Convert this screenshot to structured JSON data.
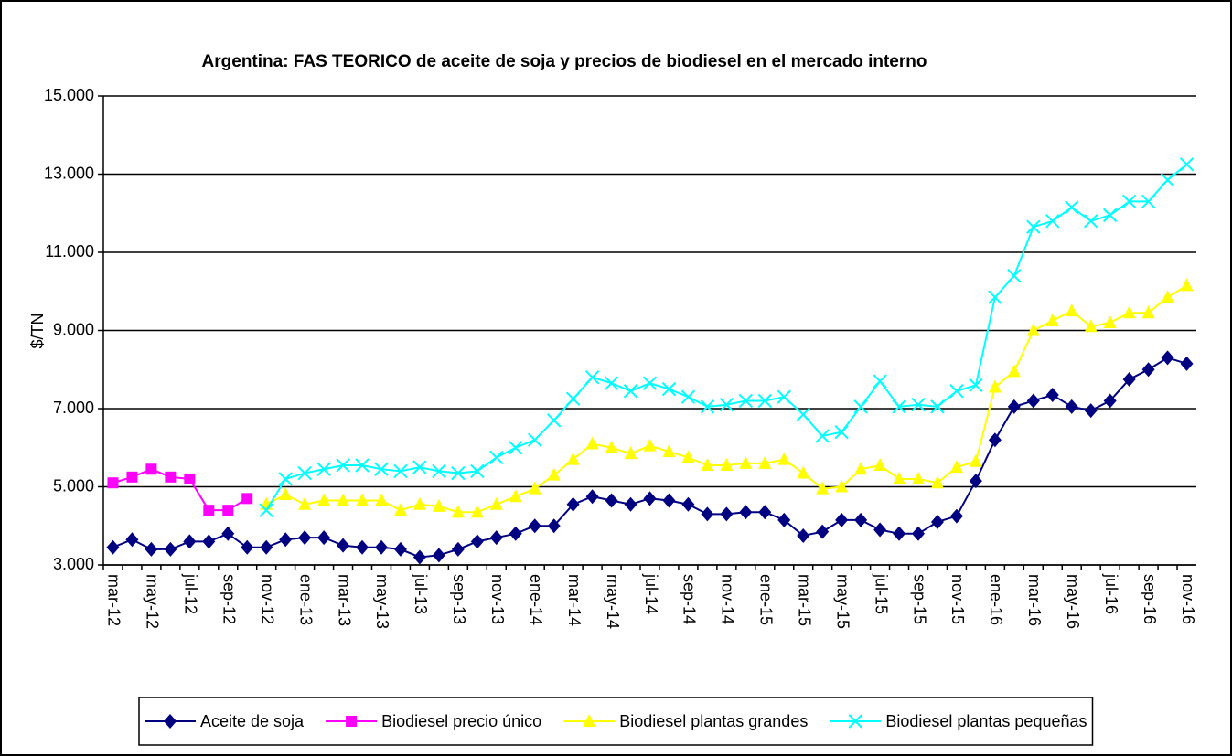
{
  "chart_data": {
    "type": "line",
    "title": "Argentina: FAS  TEORICO  de aceite de soja y precios de biodiesel en el mercado interno",
    "y_label": "$/TN",
    "categories": [
      "mar-12",
      null,
      "may-12",
      null,
      "jul-12",
      null,
      "sep-12",
      null,
      "nov-12",
      null,
      "ene-13",
      null,
      "mar-13",
      null,
      "may-13",
      null,
      "jul-13",
      null,
      "sep-13",
      null,
      "nov-13",
      null,
      "ene-14",
      null,
      "mar-14",
      null,
      "may-14",
      null,
      "jul-14",
      null,
      "sep-14",
      null,
      "nov-14",
      null,
      "ene-15",
      null,
      "mar-15",
      null,
      "may-15",
      null,
      "jul-15",
      null,
      "sep-15",
      null,
      "nov-15",
      null,
      "ene-16",
      null,
      "mar-16",
      null,
      "may-16",
      null,
      "jul-16",
      null,
      "sep-16",
      null,
      "nov-16"
    ],
    "series": [
      {
        "name": "Aceite de soja",
        "color": "#000080",
        "marker": "diamond",
        "values": [
          3450,
          3650,
          3400,
          3400,
          3600,
          3600,
          3800,
          3450,
          3450,
          3650,
          3700,
          3700,
          3500,
          3450,
          3450,
          3400,
          3200,
          3250,
          3400,
          3600,
          3700,
          3800,
          4000,
          4000,
          4550,
          4750,
          4650,
          4550,
          4700,
          4650,
          4550,
          4300,
          4300,
          4350,
          4350,
          4150,
          3750,
          3850,
          4150,
          4150,
          3900,
          3800,
          3800,
          4100,
          4250,
          5150,
          6200,
          7050,
          7200,
          7350,
          7050,
          6950,
          7200,
          7750,
          8000,
          8300,
          8150
        ]
      },
      {
        "name": "Biodiesel precio único",
        "color": "#ff00ff",
        "marker": "square",
        "values": [
          5100,
          5250,
          5450,
          5250,
          5200,
          4400,
          4400,
          4700,
          null,
          null,
          null,
          null,
          null,
          null,
          null,
          null,
          null,
          null,
          null,
          null,
          null,
          null,
          null,
          null,
          null,
          null,
          null,
          null,
          null,
          null,
          null,
          null,
          null,
          null,
          null,
          null,
          null,
          null,
          null,
          null,
          null,
          null,
          null,
          null,
          null,
          null,
          null,
          null,
          null,
          null,
          null,
          null,
          null,
          null,
          null,
          null,
          null
        ]
      },
      {
        "name": "Biodiesel plantas grandes",
        "color": "#ffff00",
        "marker": "triangle",
        "values": [
          null,
          null,
          null,
          null,
          null,
          null,
          null,
          null,
          4550,
          4800,
          4550,
          4650,
          4650,
          4650,
          4650,
          4400,
          4550,
          4500,
          4350,
          4350,
          4550,
          4750,
          4950,
          5300,
          5700,
          6100,
          6000,
          5850,
          6050,
          5900,
          5750,
          5550,
          5550,
          5600,
          5600,
          5700,
          5350,
          4950,
          5000,
          5450,
          5550,
          5200,
          5200,
          5100,
          5500,
          5650,
          7550,
          7950,
          9000,
          9250,
          9500,
          9100,
          9200,
          9450,
          9450,
          9850,
          10150
        ]
      },
      {
        "name": "Biodiesel plantas pequeñas",
        "color": "#00ffff",
        "marker": "x",
        "values": [
          null,
          null,
          null,
          null,
          null,
          null,
          null,
          null,
          4400,
          5200,
          5350,
          5450,
          5550,
          5550,
          5450,
          5400,
          5500,
          5400,
          5350,
          5400,
          5750,
          6000,
          6200,
          6700,
          7250,
          7800,
          7650,
          7450,
          7650,
          7500,
          7300,
          7050,
          7100,
          7200,
          7200,
          7300,
          6850,
          6300,
          6400,
          7050,
          7700,
          7050,
          7100,
          7050,
          7450,
          7600,
          9850,
          10400,
          11650,
          11800,
          12150,
          11800,
          11950,
          12300,
          12300,
          12850,
          13250
        ]
      }
    ],
    "ylim": [
      3000,
      15000
    ],
    "yticks": [
      {
        "value": 3000,
        "label": "3.000"
      },
      {
        "value": 5000,
        "label": "5.000"
      },
      {
        "value": 7000,
        "label": "7.000"
      },
      {
        "value": 9000,
        "label": "9.000"
      },
      {
        "value": 11000,
        "label": "11.000"
      },
      {
        "value": 13000,
        "label": "13.000"
      },
      {
        "value": 15000,
        "label": "15.000"
      }
    ],
    "grid": true,
    "legend": "bottom"
  }
}
